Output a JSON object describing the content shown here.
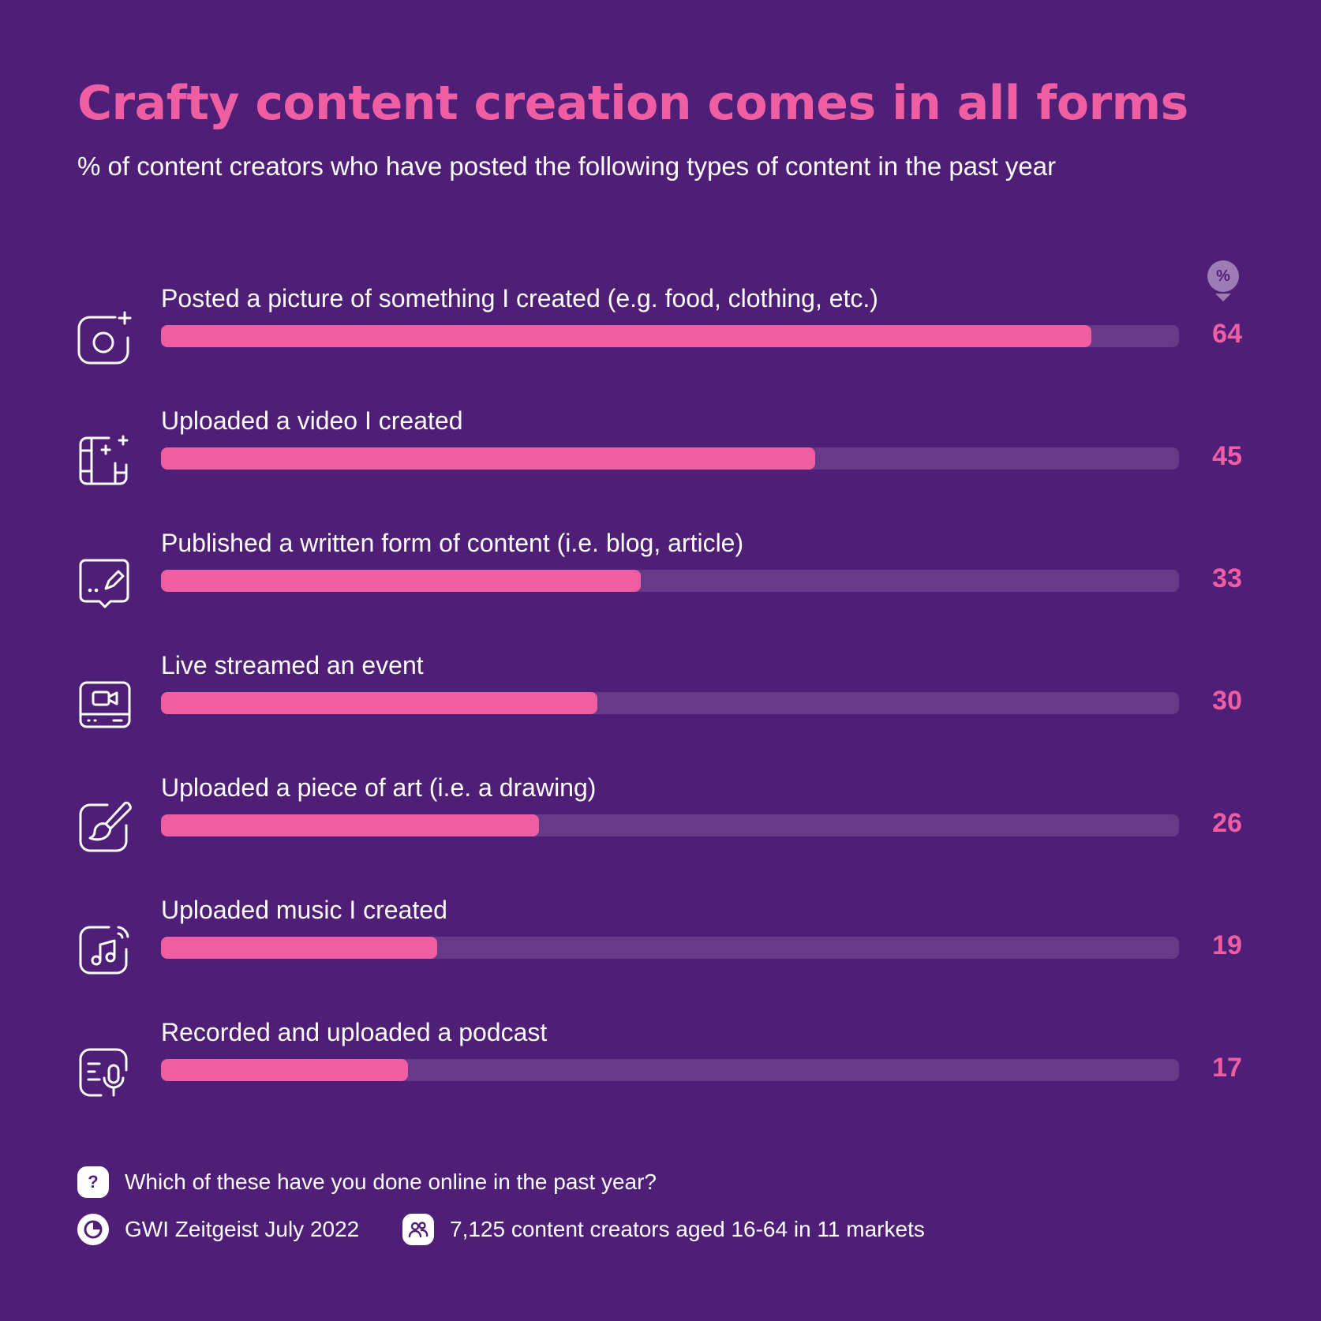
{
  "title": "Crafty content creation comes in all forms",
  "subtitle": "% of content creators who have posted the following types of content in the past year",
  "unit_badge": "%",
  "chart_data": {
    "type": "bar",
    "orientation": "horizontal",
    "title": "Crafty content creation comes in all forms",
    "subtitle": "% of content creators who have posted the following types of content in the past year",
    "xlim": [
      0,
      70
    ],
    "categories": [
      "Posted a picture of something I created (e.g. food, clothing, etc.)",
      "Uploaded a video I created",
      "Published a written form of content (i.e. blog, article)",
      "Live streamed an event",
      "Uploaded a piece of art (i.e. a drawing)",
      "Uploaded music I created",
      "Recorded and uploaded a podcast"
    ],
    "values": [
      64,
      45,
      33,
      30,
      26,
      19,
      17
    ],
    "icons": [
      "camera-plus-icon",
      "video-film-icon",
      "speech-pencil-icon",
      "livestream-camera-icon",
      "paintbrush-icon",
      "music-note-icon",
      "podcast-mic-icon"
    ],
    "colors": {
      "bar": "#ef5ea3",
      "track": "#663a88",
      "background": "#4f1f78"
    }
  },
  "footer": {
    "question": "Which of these have you done online in the past year?",
    "source": "GWI Zeitgeist July 2022",
    "sample": "7,125 content creators aged 16-64 in 11 markets",
    "question_icon_glyph": "?"
  }
}
